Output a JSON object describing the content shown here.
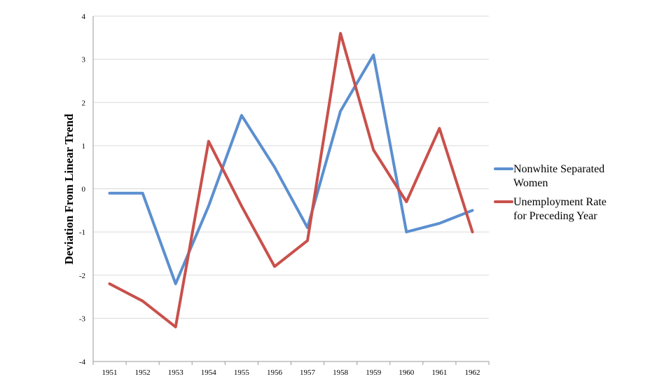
{
  "chart_data": {
    "type": "line",
    "title": "",
    "xlabel": "",
    "ylabel": "Deviation From Linear Trend",
    "categories": [
      "1951",
      "1952",
      "1953",
      "1954",
      "1955",
      "1956",
      "1957",
      "1958",
      "1959",
      "1960",
      "1961",
      "1962"
    ],
    "ylim": [
      -4,
      4
    ],
    "yticks": [
      "-4",
      "-3",
      "-2",
      "-1",
      "0",
      "1",
      "2",
      "3",
      "4"
    ],
    "grid": true,
    "legend_position": "right",
    "series": [
      {
        "name": "Nonwhite Separated Women",
        "legend_lines": [
          "Nonwhite Separated",
          "Women"
        ],
        "color": "#5b8fcf",
        "values": [
          -0.1,
          -0.1,
          -2.2,
          -0.4,
          1.7,
          0.5,
          -0.9,
          1.8,
          3.1,
          -1.0,
          -0.8,
          -0.5
        ]
      },
      {
        "name": "Unemployment Rate for Preceding Year",
        "legend_lines": [
          "Unemployment Rate",
          "for Preceding Year"
        ],
        "color": "#c9504b",
        "values": [
          -2.2,
          -2.6,
          -3.2,
          1.1,
          -0.4,
          -1.8,
          -1.2,
          3.6,
          0.9,
          -0.3,
          1.4,
          -1.0
        ]
      }
    ]
  }
}
